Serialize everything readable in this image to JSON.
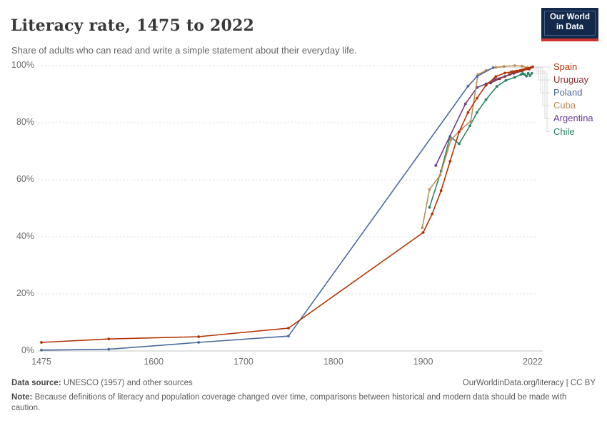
{
  "header": {
    "title": "Literacy rate, 1475 to 2022",
    "subtitle": "Share of adults who can read and write a simple statement about their everyday life."
  },
  "logo": {
    "line1": "Our World",
    "line2": "in Data",
    "bg_color": "#12294b",
    "accent_color": "#cf342e"
  },
  "footer": {
    "datasource_label": "Data source:",
    "datasource_text": " UNESCO (1957) and other sources",
    "permalink": "OurWorldinData.org/literacy | CC BY",
    "note_label": "Note:",
    "note_text": " Because definitions of literacy and population coverage changed over time, comparisons between historical and modern data should be made with caution."
  },
  "chart_data": {
    "type": "line",
    "title": "Literacy rate, 1475 to 2022",
    "subtitle": "Share of adults who can read and write a simple statement about their everyday life.",
    "xlabel": "",
    "ylabel": "",
    "xlim": [
      1475,
      2022
    ],
    "ylim": [
      0,
      100
    ],
    "grid": "horizontal-dashed",
    "legend_position": "right",
    "x_ticks": [
      {
        "value": 1475,
        "label": "1475"
      },
      {
        "value": 1600,
        "label": "1600"
      },
      {
        "value": 1700,
        "label": "1700"
      },
      {
        "value": 1800,
        "label": "1800"
      },
      {
        "value": 1900,
        "label": "1900"
      },
      {
        "value": 2022,
        "label": "2022"
      }
    ],
    "y_ticks": [
      {
        "value": 0,
        "label": "0%"
      },
      {
        "value": 20,
        "label": "20%"
      },
      {
        "value": 40,
        "label": "40%"
      },
      {
        "value": 60,
        "label": "60%"
      },
      {
        "value": 80,
        "label": "80%"
      },
      {
        "value": 100,
        "label": "100%"
      }
    ],
    "series": [
      {
        "name": "Spain",
        "color": "#b13507",
        "points": [
          [
            1475,
            3
          ],
          [
            1550,
            4.2
          ],
          [
            1650,
            5
          ],
          [
            1750,
            8
          ],
          [
            1900,
            41.5
          ],
          [
            1910,
            48
          ],
          [
            1920,
            56.2
          ],
          [
            1930,
            66.5
          ],
          [
            1940,
            76.8
          ],
          [
            1950,
            83.6
          ],
          [
            1960,
            88.6
          ],
          [
            1970,
            93.1
          ],
          [
            1981,
            96.2
          ],
          [
            1991,
            97.4
          ],
          [
            1998,
            97.8
          ],
          [
            2000,
            97.9
          ],
          [
            2002,
            97.9
          ],
          [
            2004,
            98.1
          ],
          [
            2006,
            98.1
          ],
          [
            2008,
            98.3
          ],
          [
            2010,
            98.4
          ],
          [
            2012,
            98.6
          ],
          [
            2014,
            98.8
          ],
          [
            2016,
            98.9
          ],
          [
            2018,
            99.1
          ],
          [
            2020,
            99.3
          ],
          [
            2022,
            99.6
          ]
        ]
      },
      {
        "name": "Uruguay",
        "color": "#883039",
        "points": [
          [
            1975,
            93.9
          ],
          [
            1985,
            95.4
          ],
          [
            1996,
            96.9
          ],
          [
            2006,
            98.0
          ],
          [
            2011,
            98.4
          ],
          [
            2018,
            98.8
          ]
        ]
      },
      {
        "name": "Poland",
        "color": "#4c6a9c",
        "points": [
          [
            1475,
            0.3
          ],
          [
            1550,
            0.6
          ],
          [
            1650,
            3
          ],
          [
            1750,
            5.2
          ],
          [
            1950,
            92.8
          ],
          [
            1960,
            96.2
          ],
          [
            1978,
            99.3
          ]
        ]
      },
      {
        "name": "Cuba",
        "color": "#bc8e5a",
        "points": [
          [
            1899,
            43.2
          ],
          [
            1907,
            56.6
          ],
          [
            1919,
            61.6
          ],
          [
            1931,
            74
          ],
          [
            1943,
            77.9
          ],
          [
            1953,
            80.5
          ],
          [
            1961,
            96.9
          ],
          [
            1970,
            98.3
          ],
          [
            1981,
            99.4
          ],
          [
            1990,
            99.7
          ],
          [
            2002,
            100
          ],
          [
            2010,
            99.8
          ],
          [
            2016,
            99.3
          ]
        ]
      },
      {
        "name": "Argentina",
        "color": "#6d3e91",
        "points": [
          [
            1914,
            65
          ],
          [
            1947,
            86.6
          ],
          [
            1960,
            92.3
          ],
          [
            1970,
            93.6
          ],
          [
            1980,
            95.2
          ],
          [
            1991,
            96.2
          ],
          [
            2001,
            97.3
          ],
          [
            2010,
            98.1
          ]
        ]
      },
      {
        "name": "Chile",
        "color": "#2c8465",
        "points": [
          [
            1907,
            50.3
          ],
          [
            1920,
            63.1
          ],
          [
            1930,
            75.2
          ],
          [
            1940,
            72.6
          ],
          [
            1952,
            78.9
          ],
          [
            1960,
            83.6
          ],
          [
            1970,
            88.1
          ],
          [
            1982,
            92.7
          ],
          [
            1992,
            94.8
          ],
          [
            2002,
            95.9
          ],
          [
            2009,
            96.9
          ],
          [
            2011,
            97.2
          ],
          [
            2013,
            96.9
          ],
          [
            2015,
            96.3
          ],
          [
            2017,
            97.3
          ],
          [
            2019,
            96.5
          ],
          [
            2021,
            97.3
          ]
        ]
      }
    ]
  }
}
